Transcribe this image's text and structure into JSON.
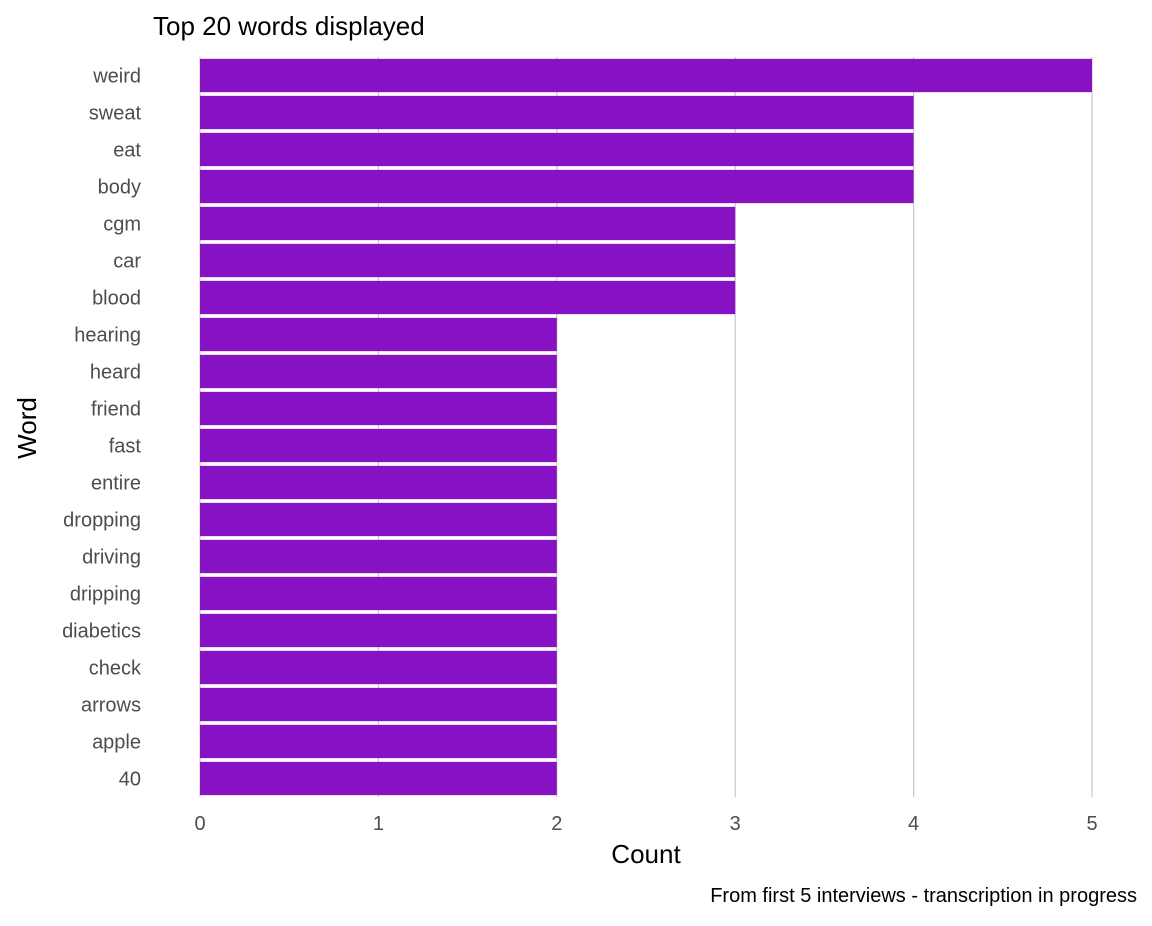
{
  "chart_data": {
    "type": "bar",
    "orientation": "horizontal",
    "title": "Top 20 words displayed",
    "xlabel": "Count",
    "ylabel": "Word",
    "caption": "From first 5 interviews - transcription in progress",
    "categories": [
      "weird",
      "sweat",
      "eat",
      "body",
      "cgm",
      "car",
      "blood",
      "hearing",
      "heard",
      "friend",
      "fast",
      "entire",
      "dropping",
      "driving",
      "dripping",
      "diabetics",
      "check",
      "arrows",
      "apple",
      "40"
    ],
    "values": [
      5,
      4,
      4,
      4,
      3,
      3,
      3,
      2,
      2,
      2,
      2,
      2,
      2,
      2,
      2,
      2,
      2,
      2,
      2,
      2
    ],
    "xlim": [
      0,
      5
    ],
    "xticks": [
      0,
      1,
      2,
      3,
      4,
      5
    ],
    "grid": "vertical major",
    "legend": "none",
    "bar_color": "#8712C4",
    "gridline_color": "#C8C8C8"
  }
}
